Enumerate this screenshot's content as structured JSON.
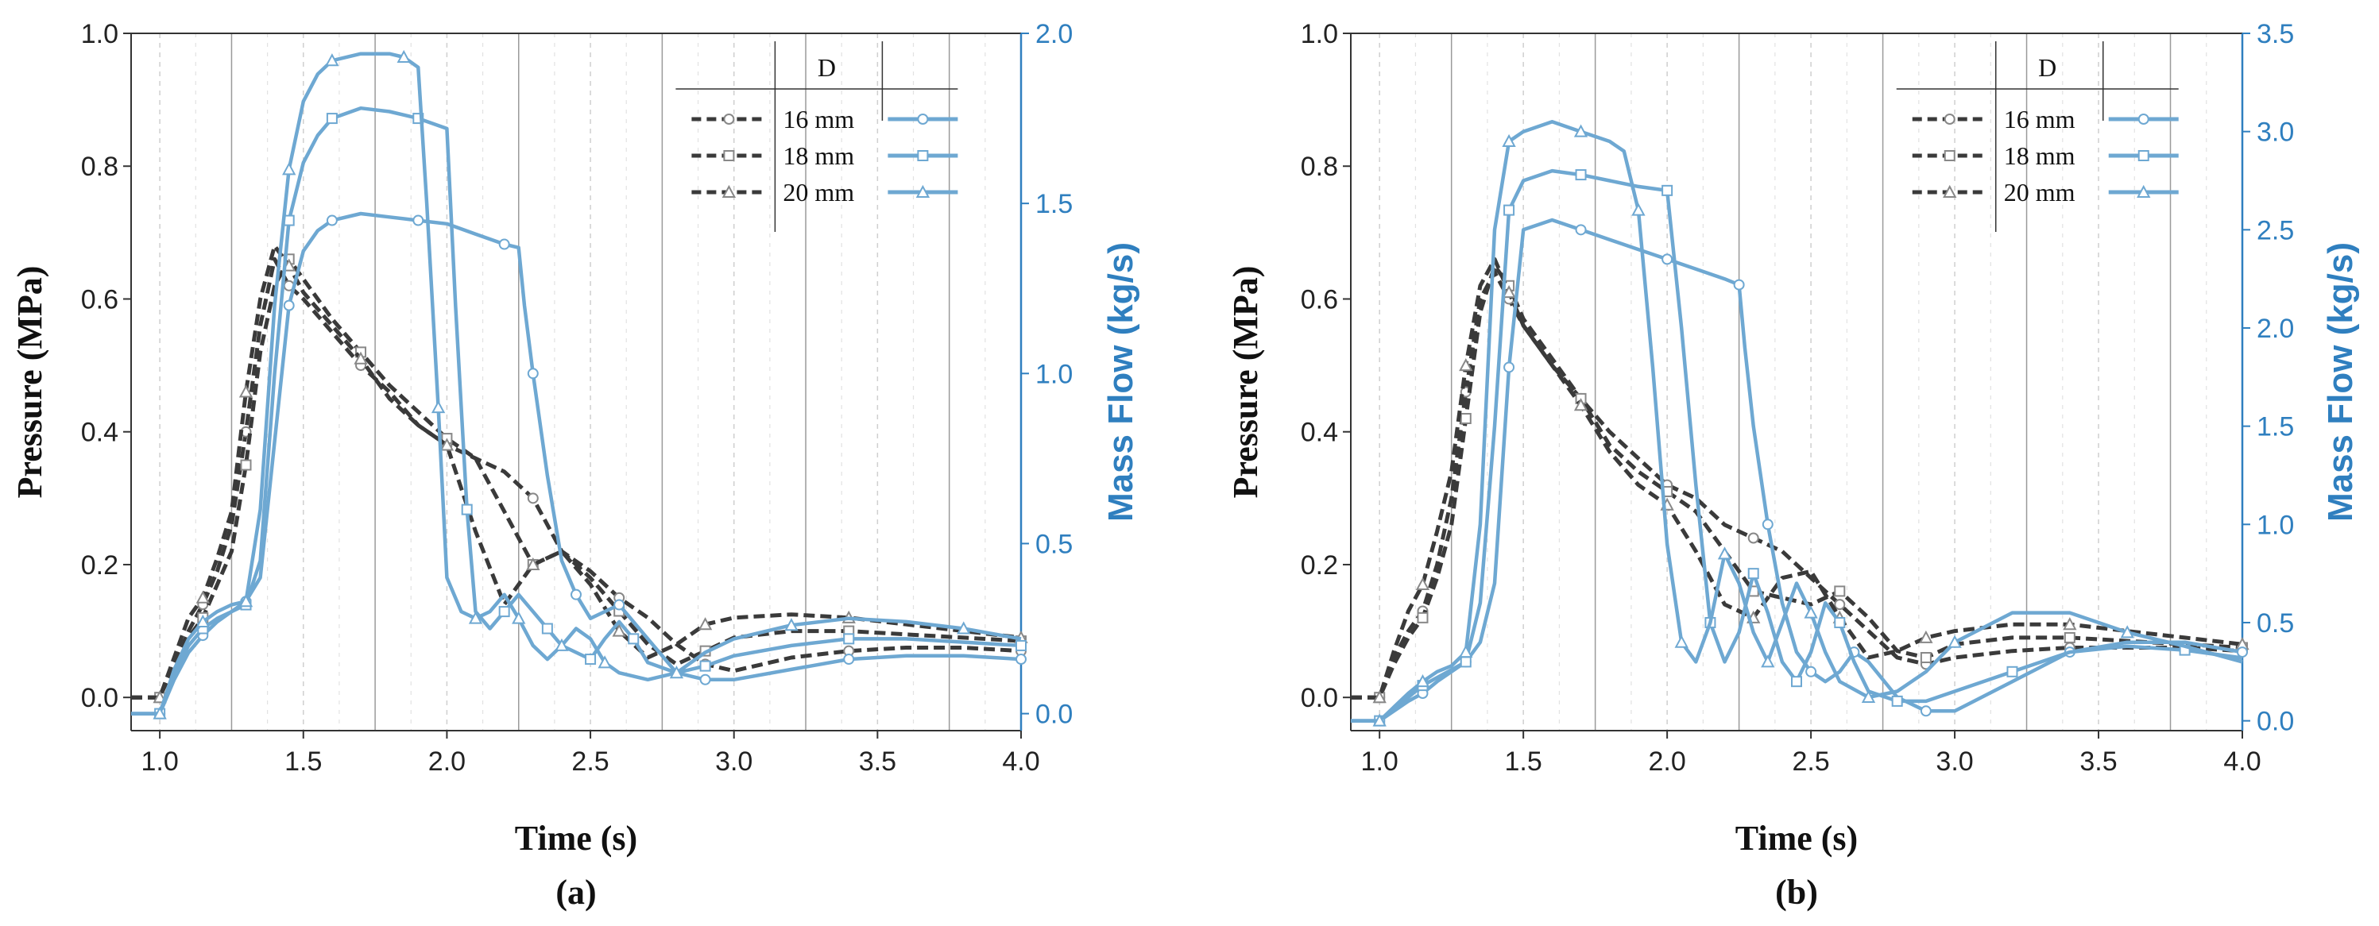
{
  "colors": {
    "pressure": "#3a3a3a",
    "mass_flow": "#6ea8d2",
    "axis_right": "#2f7fbf",
    "grid_major": "#9a9a9a",
    "grid_minor": "#cfcfcf"
  },
  "chart_data": [
    {
      "id": "a",
      "type": "line",
      "caption": "(a)",
      "xlabel": "Time (s)",
      "ylabel_left": "Pressure (MPa)",
      "ylabel_right": "Mass Flow (kg/s)",
      "xlim": [
        0.9,
        4.0
      ],
      "ylim_left": [
        -0.05,
        1.0
      ],
      "ylim_right": [
        -0.05,
        2.0
      ],
      "xticks": [
        "1.0",
        "1.5",
        "2.0",
        "2.5",
        "3.0",
        "3.5",
        "4.0"
      ],
      "yticks_left": [
        "0.0",
        "0.2",
        "0.4",
        "0.6",
        "0.8",
        "1.0"
      ],
      "yticks_right": [
        "0.0",
        "0.5",
        "1.0",
        "1.5",
        "2.0"
      ],
      "legend": {
        "header": "D",
        "entries": [
          "16 mm",
          "18 mm",
          "20 mm"
        ],
        "markers": [
          "circle",
          "square",
          "triangle"
        ]
      },
      "series": [
        {
          "name": "Pressure 16 mm",
          "axis": "left",
          "marker": "circle",
          "x": [
            0.9,
            1.0,
            1.05,
            1.1,
            1.15,
            1.2,
            1.25,
            1.3,
            1.35,
            1.4,
            1.45,
            1.5,
            1.6,
            1.7,
            1.8,
            1.9,
            2.0,
            2.1,
            2.2,
            2.3,
            2.4,
            2.5,
            2.6,
            2.7,
            2.8,
            2.9,
            3.0,
            3.2,
            3.4,
            3.6,
            3.8,
            4.0
          ],
          "values": [
            0.0,
            0.0,
            0.05,
            0.1,
            0.14,
            0.19,
            0.26,
            0.4,
            0.56,
            0.66,
            0.62,
            0.6,
            0.55,
            0.5,
            0.46,
            0.41,
            0.38,
            0.36,
            0.34,
            0.3,
            0.22,
            0.19,
            0.15,
            0.12,
            0.08,
            0.05,
            0.04,
            0.06,
            0.07,
            0.075,
            0.075,
            0.07
          ]
        },
        {
          "name": "Pressure 18 mm",
          "axis": "left",
          "marker": "square",
          "x": [
            0.9,
            1.0,
            1.05,
            1.1,
            1.15,
            1.2,
            1.25,
            1.3,
            1.35,
            1.4,
            1.45,
            1.5,
            1.6,
            1.7,
            1.8,
            1.9,
            2.0,
            2.1,
            2.2,
            2.3,
            2.4,
            2.5,
            2.6,
            2.7,
            2.8,
            2.9,
            3.0,
            3.2,
            3.4,
            3.6,
            3.8,
            4.0
          ],
          "values": [
            0.0,
            0.0,
            0.05,
            0.09,
            0.12,
            0.17,
            0.22,
            0.35,
            0.52,
            0.62,
            0.66,
            0.63,
            0.57,
            0.52,
            0.47,
            0.43,
            0.39,
            0.36,
            0.28,
            0.2,
            0.22,
            0.18,
            0.13,
            0.08,
            0.05,
            0.07,
            0.09,
            0.1,
            0.1,
            0.095,
            0.09,
            0.085
          ]
        },
        {
          "name": "Pressure 20 mm",
          "axis": "left",
          "marker": "triangle",
          "x": [
            0.9,
            1.0,
            1.05,
            1.1,
            1.15,
            1.2,
            1.25,
            1.3,
            1.35,
            1.4,
            1.45,
            1.5,
            1.6,
            1.7,
            1.8,
            1.9,
            2.0,
            2.1,
            2.2,
            2.3,
            2.4,
            2.5,
            2.6,
            2.7,
            2.8,
            2.9,
            3.0,
            3.2,
            3.4,
            3.6,
            3.8,
            4.0
          ],
          "values": [
            0.0,
            0.0,
            0.06,
            0.12,
            0.15,
            0.21,
            0.28,
            0.46,
            0.6,
            0.68,
            0.65,
            0.61,
            0.56,
            0.51,
            0.45,
            0.41,
            0.38,
            0.25,
            0.14,
            0.2,
            0.22,
            0.17,
            0.1,
            0.06,
            0.08,
            0.11,
            0.12,
            0.125,
            0.12,
            0.11,
            0.1,
            0.09
          ]
        },
        {
          "name": "Mass Flow 16 mm",
          "axis": "right",
          "marker": "circle",
          "x": [
            0.9,
            1.0,
            1.05,
            1.1,
            1.15,
            1.2,
            1.25,
            1.3,
            1.35,
            1.4,
            1.45,
            1.5,
            1.55,
            1.6,
            1.7,
            1.8,
            1.9,
            2.0,
            2.1,
            2.2,
            2.25,
            2.27,
            2.3,
            2.35,
            2.4,
            2.45,
            2.5,
            2.55,
            2.6,
            2.7,
            2.8,
            2.9,
            3.0,
            3.2,
            3.4,
            3.6,
            3.8,
            4.0
          ],
          "values": [
            0.0,
            0.0,
            0.1,
            0.18,
            0.23,
            0.27,
            0.3,
            0.33,
            0.4,
            0.8,
            1.2,
            1.36,
            1.42,
            1.45,
            1.47,
            1.46,
            1.45,
            1.44,
            1.41,
            1.38,
            1.37,
            1.2,
            1.0,
            0.7,
            0.45,
            0.35,
            0.28,
            0.3,
            0.32,
            0.22,
            0.12,
            0.1,
            0.1,
            0.13,
            0.16,
            0.17,
            0.17,
            0.16
          ]
        },
        {
          "name": "Mass Flow 18 mm",
          "axis": "right",
          "marker": "square",
          "x": [
            0.9,
            1.0,
            1.05,
            1.1,
            1.15,
            1.2,
            1.25,
            1.3,
            1.35,
            1.4,
            1.45,
            1.5,
            1.55,
            1.6,
            1.7,
            1.8,
            1.9,
            2.0,
            2.03,
            2.07,
            2.1,
            2.15,
            2.2,
            2.25,
            2.3,
            2.35,
            2.4,
            2.45,
            2.5,
            2.55,
            2.6,
            2.65,
            2.7,
            2.8,
            2.9,
            3.0,
            3.2,
            3.4,
            3.6,
            3.8,
            4.0
          ],
          "values": [
            0.0,
            0.0,
            0.12,
            0.2,
            0.25,
            0.28,
            0.3,
            0.32,
            0.45,
            1.0,
            1.45,
            1.62,
            1.7,
            1.75,
            1.78,
            1.77,
            1.75,
            1.72,
            1.2,
            0.6,
            0.3,
            0.25,
            0.3,
            0.35,
            0.3,
            0.25,
            0.2,
            0.18,
            0.16,
            0.22,
            0.27,
            0.22,
            0.15,
            0.12,
            0.14,
            0.17,
            0.2,
            0.22,
            0.22,
            0.21,
            0.2
          ]
        },
        {
          "name": "Mass Flow 20 mm",
          "axis": "right",
          "marker": "triangle",
          "x": [
            0.9,
            1.0,
            1.05,
            1.1,
            1.15,
            1.2,
            1.25,
            1.3,
            1.35,
            1.4,
            1.45,
            1.5,
            1.55,
            1.6,
            1.7,
            1.8,
            1.85,
            1.9,
            1.93,
            1.97,
            2.0,
            2.05,
            2.1,
            2.15,
            2.2,
            2.25,
            2.3,
            2.35,
            2.4,
            2.45,
            2.5,
            2.55,
            2.6,
            2.7,
            2.8,
            2.9,
            3.0,
            3.2,
            3.4,
            3.6,
            3.8,
            4.0
          ],
          "values": [
            0.0,
            0.0,
            0.13,
            0.22,
            0.27,
            0.3,
            0.32,
            0.33,
            0.6,
            1.2,
            1.6,
            1.8,
            1.88,
            1.92,
            1.94,
            1.94,
            1.93,
            1.9,
            1.5,
            0.9,
            0.4,
            0.3,
            0.28,
            0.3,
            0.35,
            0.28,
            0.2,
            0.16,
            0.2,
            0.25,
            0.22,
            0.15,
            0.12,
            0.1,
            0.12,
            0.18,
            0.22,
            0.26,
            0.28,
            0.27,
            0.25,
            0.22
          ]
        }
      ]
    },
    {
      "id": "b",
      "type": "line",
      "caption": "(b)",
      "xlabel": "Time (s)",
      "ylabel_left": "Pressure (MPa)",
      "ylabel_right": "Mass Flow (kg/s)",
      "xlim": [
        0.9,
        4.0
      ],
      "ylim_left": [
        -0.05,
        1.0
      ],
      "ylim_right": [
        -0.05,
        3.5
      ],
      "xticks": [
        "1.0",
        "1.5",
        "2.0",
        "2.5",
        "3.0",
        "3.5",
        "4.0"
      ],
      "yticks_left": [
        "0.0",
        "0.2",
        "0.4",
        "0.6",
        "0.8",
        "1.0"
      ],
      "yticks_right": [
        "0.0",
        "0.5",
        "1.0",
        "1.5",
        "2.0",
        "2.5",
        "3.0",
        "3.5"
      ],
      "legend": {
        "header": "D",
        "entries": [
          "16 mm",
          "18 mm",
          "20 mm"
        ],
        "markers": [
          "circle",
          "square",
          "triangle"
        ]
      },
      "series": [
        {
          "name": "Pressure 16 mm",
          "axis": "left",
          "marker": "circle",
          "x": [
            0.9,
            1.0,
            1.05,
            1.1,
            1.15,
            1.2,
            1.25,
            1.3,
            1.35,
            1.4,
            1.45,
            1.5,
            1.6,
            1.7,
            1.8,
            1.9,
            2.0,
            2.1,
            2.2,
            2.3,
            2.4,
            2.5,
            2.6,
            2.7,
            2.8,
            2.9,
            3.0,
            3.2,
            3.4,
            3.6,
            3.8,
            4.0
          ],
          "values": [
            0.0,
            0.0,
            0.06,
            0.1,
            0.13,
            0.2,
            0.3,
            0.46,
            0.6,
            0.64,
            0.6,
            0.56,
            0.5,
            0.45,
            0.4,
            0.36,
            0.32,
            0.3,
            0.26,
            0.24,
            0.22,
            0.18,
            0.14,
            0.1,
            0.06,
            0.05,
            0.06,
            0.07,
            0.075,
            0.075,
            0.075,
            0.07
          ]
        },
        {
          "name": "Pressure 18 mm",
          "axis": "left",
          "marker": "square",
          "x": [
            0.9,
            1.0,
            1.05,
            1.1,
            1.15,
            1.2,
            1.25,
            1.3,
            1.35,
            1.4,
            1.45,
            1.5,
            1.6,
            1.7,
            1.8,
            1.9,
            2.0,
            2.1,
            2.2,
            2.3,
            2.4,
            2.5,
            2.6,
            2.7,
            2.8,
            2.9,
            3.0,
            3.2,
            3.4,
            3.6,
            3.8,
            4.0
          ],
          "values": [
            0.0,
            0.0,
            0.05,
            0.09,
            0.12,
            0.18,
            0.26,
            0.42,
            0.58,
            0.65,
            0.62,
            0.57,
            0.51,
            0.45,
            0.38,
            0.34,
            0.31,
            0.28,
            0.22,
            0.16,
            0.15,
            0.14,
            0.16,
            0.12,
            0.07,
            0.06,
            0.08,
            0.09,
            0.09,
            0.085,
            0.08,
            0.075
          ]
        },
        {
          "name": "Pressure 20 mm",
          "axis": "left",
          "marker": "triangle",
          "x": [
            0.9,
            1.0,
            1.05,
            1.1,
            1.15,
            1.2,
            1.25,
            1.3,
            1.35,
            1.4,
            1.45,
            1.5,
            1.6,
            1.7,
            1.8,
            1.9,
            2.0,
            2.1,
            2.2,
            2.3,
            2.4,
            2.5,
            2.6,
            2.7,
            2.8,
            2.9,
            3.0,
            3.2,
            3.4,
            3.6,
            3.8,
            4.0
          ],
          "values": [
            0.0,
            0.0,
            0.07,
            0.13,
            0.17,
            0.25,
            0.34,
            0.5,
            0.62,
            0.66,
            0.61,
            0.56,
            0.5,
            0.44,
            0.37,
            0.32,
            0.29,
            0.22,
            0.14,
            0.12,
            0.18,
            0.19,
            0.12,
            0.06,
            0.07,
            0.09,
            0.1,
            0.11,
            0.11,
            0.1,
            0.09,
            0.08
          ]
        },
        {
          "name": "Mass Flow 16 mm",
          "axis": "right",
          "marker": "circle",
          "x": [
            0.9,
            1.0,
            1.05,
            1.1,
            1.15,
            1.2,
            1.25,
            1.3,
            1.35,
            1.4,
            1.45,
            1.5,
            1.6,
            1.7,
            1.8,
            1.9,
            2.0,
            2.1,
            2.2,
            2.25,
            2.27,
            2.3,
            2.35,
            2.4,
            2.45,
            2.5,
            2.55,
            2.6,
            2.65,
            2.7,
            2.8,
            2.9,
            3.0,
            3.2,
            3.4,
            3.6,
            3.8,
            4.0
          ],
          "values": [
            0.0,
            0.0,
            0.05,
            0.1,
            0.14,
            0.2,
            0.25,
            0.3,
            0.4,
            0.7,
            1.8,
            2.5,
            2.55,
            2.5,
            2.45,
            2.4,
            2.35,
            2.3,
            2.25,
            2.22,
            1.9,
            1.5,
            1.0,
            0.6,
            0.35,
            0.25,
            0.2,
            0.25,
            0.35,
            0.3,
            0.12,
            0.05,
            0.05,
            0.2,
            0.35,
            0.4,
            0.4,
            0.35
          ]
        },
        {
          "name": "Mass Flow 18 mm",
          "axis": "right",
          "marker": "square",
          "x": [
            0.9,
            1.0,
            1.05,
            1.1,
            1.15,
            1.2,
            1.25,
            1.3,
            1.35,
            1.4,
            1.45,
            1.5,
            1.6,
            1.7,
            1.8,
            1.9,
            2.0,
            2.05,
            2.1,
            2.15,
            2.2,
            2.25,
            2.3,
            2.35,
            2.4,
            2.45,
            2.5,
            2.55,
            2.6,
            2.65,
            2.7,
            2.8,
            2.9,
            3.0,
            3.2,
            3.4,
            3.6,
            3.8,
            4.0
          ],
          "values": [
            0.0,
            0.0,
            0.06,
            0.12,
            0.18,
            0.22,
            0.26,
            0.3,
            0.6,
            1.5,
            2.6,
            2.75,
            2.8,
            2.78,
            2.75,
            2.72,
            2.7,
            2.0,
            1.2,
            0.5,
            0.3,
            0.45,
            0.75,
            0.55,
            0.3,
            0.2,
            0.35,
            0.6,
            0.5,
            0.3,
            0.15,
            0.1,
            0.1,
            0.15,
            0.25,
            0.35,
            0.38,
            0.36,
            0.32
          ]
        },
        {
          "name": "Mass Flow 20 mm",
          "axis": "right",
          "marker": "triangle",
          "x": [
            0.9,
            1.0,
            1.05,
            1.1,
            1.15,
            1.2,
            1.25,
            1.3,
            1.35,
            1.4,
            1.45,
            1.5,
            1.6,
            1.7,
            1.8,
            1.85,
            1.9,
            1.95,
            2.0,
            2.05,
            2.1,
            2.15,
            2.2,
            2.25,
            2.3,
            2.35,
            2.4,
            2.45,
            2.5,
            2.55,
            2.6,
            2.7,
            2.8,
            2.9,
            3.0,
            3.2,
            3.4,
            3.6,
            3.8,
            4.0
          ],
          "values": [
            0.0,
            0.0,
            0.07,
            0.14,
            0.2,
            0.25,
            0.28,
            0.35,
            1.0,
            2.5,
            2.95,
            3.0,
            3.05,
            3.0,
            2.95,
            2.9,
            2.6,
            1.8,
            0.9,
            0.4,
            0.3,
            0.5,
            0.85,
            0.7,
            0.45,
            0.3,
            0.5,
            0.7,
            0.55,
            0.35,
            0.2,
            0.12,
            0.15,
            0.25,
            0.4,
            0.55,
            0.55,
            0.45,
            0.38,
            0.3
          ]
        }
      ]
    }
  ]
}
